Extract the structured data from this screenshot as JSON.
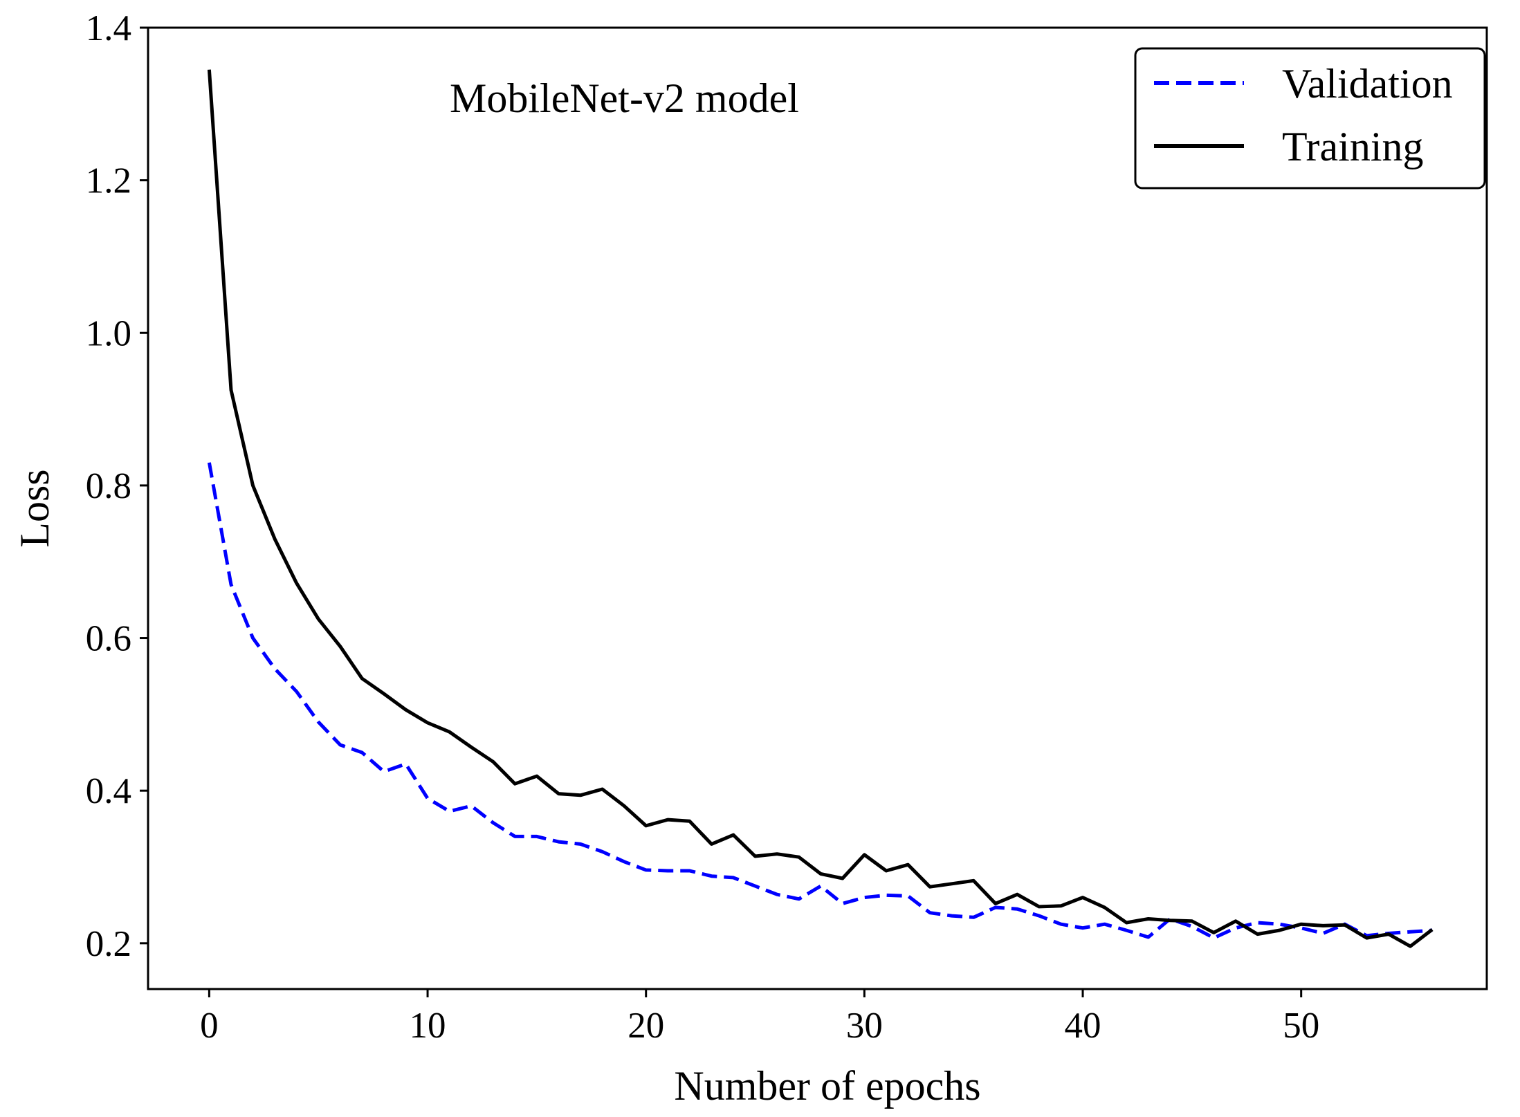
{
  "chart_data": {
    "type": "line",
    "title": "",
    "annotation": "MobileNet-v2 model",
    "xlabel": "Number of epochs",
    "ylabel": "Loss",
    "xlim": [
      -2.8,
      58.5
    ],
    "ylim": [
      0.14,
      1.4
    ],
    "xticks": [
      0,
      10,
      20,
      30,
      40,
      50
    ],
    "yticks": [
      0.2,
      0.4,
      0.6,
      0.8,
      1.0,
      1.2,
      1.4
    ],
    "xtick_labels": [
      "0",
      "10",
      "20",
      "30",
      "40",
      "50"
    ],
    "ytick_labels": [
      "0.2",
      "0.4",
      "0.6",
      "0.8",
      "1.0",
      "1.2",
      "1.4"
    ],
    "grid": false,
    "legend_position": "top-right",
    "x": [
      0,
      1,
      2,
      3,
      4,
      5,
      6,
      7,
      8,
      9,
      10,
      11,
      12,
      13,
      14,
      15,
      16,
      17,
      18,
      19,
      20,
      21,
      22,
      23,
      24,
      25,
      26,
      27,
      28,
      29,
      30,
      31,
      32,
      33,
      34,
      35,
      36,
      37,
      38,
      39,
      40,
      41,
      42,
      43,
      44,
      45,
      46,
      47,
      48,
      49,
      50,
      51,
      52,
      53,
      54,
      55,
      56
    ],
    "series": [
      {
        "name": "Validation",
        "color": "#0000ff",
        "dash": "dashed",
        "values": [
          0.83,
          0.67,
          0.6,
          0.56,
          0.53,
          0.49,
          0.46,
          0.45,
          0.425,
          0.435,
          0.39,
          0.373,
          0.38,
          0.358,
          0.34,
          0.34,
          0.333,
          0.33,
          0.32,
          0.307,
          0.296,
          0.295,
          0.295,
          0.288,
          0.286,
          0.275,
          0.264,
          0.258,
          0.275,
          0.252,
          0.26,
          0.263,
          0.262,
          0.24,
          0.236,
          0.234,
          0.247,
          0.245,
          0.236,
          0.225,
          0.22,
          0.225,
          0.217,
          0.208,
          0.232,
          0.222,
          0.207,
          0.22,
          0.227,
          0.225,
          0.22,
          0.213,
          0.225,
          0.21,
          0.213,
          0.215,
          0.217
        ]
      },
      {
        "name": "Training",
        "color": "#000000",
        "dash": "solid",
        "values": [
          1.345,
          0.925,
          0.8,
          0.73,
          0.672,
          0.625,
          0.589,
          0.547,
          0.527,
          0.506,
          0.489,
          0.477,
          0.457,
          0.438,
          0.409,
          0.419,
          0.396,
          0.394,
          0.402,
          0.38,
          0.354,
          0.362,
          0.36,
          0.33,
          0.342,
          0.314,
          0.317,
          0.313,
          0.291,
          0.285,
          0.316,
          0.295,
          0.303,
          0.274,
          0.278,
          0.282,
          0.252,
          0.264,
          0.248,
          0.249,
          0.26,
          0.247,
          0.227,
          0.232,
          0.23,
          0.229,
          0.214,
          0.229,
          0.212,
          0.217,
          0.225,
          0.223,
          0.224,
          0.207,
          0.212,
          0.196,
          0.218
        ]
      }
    ]
  }
}
